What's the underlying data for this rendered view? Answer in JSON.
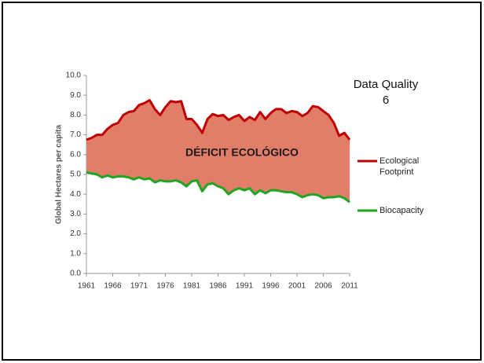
{
  "chart_data": {
    "type": "line",
    "y_label": "Global Hectares per capita",
    "annotations": [
      "DÉFICIT ECOLÓGICO",
      "Data Quality",
      "6"
    ],
    "fill_between": true,
    "fill_color": "#e27d6a",
    "x": [
      1961,
      1962,
      1963,
      1964,
      1965,
      1966,
      1967,
      1968,
      1969,
      1970,
      1971,
      1972,
      1973,
      1974,
      1975,
      1976,
      1977,
      1978,
      1979,
      1980,
      1981,
      1982,
      1983,
      1984,
      1985,
      1986,
      1987,
      1988,
      1989,
      1990,
      1991,
      1992,
      1993,
      1994,
      1995,
      1996,
      1997,
      1998,
      1999,
      2000,
      2001,
      2002,
      2003,
      2004,
      2005,
      2006,
      2007,
      2008,
      2009,
      2010,
      2011
    ],
    "series": [
      {
        "name": "Ecological Footprint",
        "color": "#c00000",
        "values": [
          6.75,
          6.85,
          7.0,
          7.0,
          7.3,
          7.5,
          7.6,
          8.0,
          8.15,
          8.2,
          8.5,
          8.6,
          8.75,
          8.3,
          8.0,
          8.4,
          8.7,
          8.65,
          8.7,
          7.8,
          7.8,
          7.5,
          7.1,
          7.8,
          8.05,
          7.95,
          8.0,
          7.75,
          7.9,
          8.0,
          7.7,
          7.9,
          7.75,
          8.15,
          7.8,
          8.1,
          8.3,
          8.3,
          8.1,
          8.2,
          8.15,
          7.95,
          8.1,
          8.45,
          8.4,
          8.2,
          8.0,
          7.6,
          6.95,
          7.1,
          6.75
        ]
      },
      {
        "name": "Biocapacity",
        "color": "#1fa51f",
        "values": [
          5.1,
          5.05,
          5.0,
          4.85,
          4.95,
          4.85,
          4.9,
          4.9,
          4.85,
          4.75,
          4.85,
          4.75,
          4.8,
          4.6,
          4.7,
          4.65,
          4.65,
          4.7,
          4.6,
          4.4,
          4.65,
          4.7,
          4.15,
          4.5,
          4.55,
          4.4,
          4.3,
          4.0,
          4.2,
          4.3,
          4.2,
          4.3,
          4.0,
          4.2,
          4.05,
          4.2,
          4.2,
          4.15,
          4.1,
          4.1,
          4.0,
          3.85,
          3.95,
          4.0,
          3.95,
          3.8,
          3.85,
          3.85,
          3.9,
          3.8,
          3.6
        ]
      }
    ],
    "xlim": [
      1961,
      2011
    ],
    "xticks": [
      1961,
      1966,
      1971,
      1976,
      1981,
      1986,
      1991,
      1996,
      2001,
      2006,
      2011
    ],
    "ylim": [
      0,
      10
    ],
    "yticks": [
      {
        "value": 0,
        "label": "0.0"
      },
      {
        "value": 1,
        "label": "1.0"
      },
      {
        "value": 2,
        "label": "2.0"
      },
      {
        "value": 3,
        "label": "3.0"
      },
      {
        "value": 4,
        "label": "4.0"
      },
      {
        "value": 5,
        "label": "5.0"
      },
      {
        "value": 6,
        "label": "6.0"
      },
      {
        "value": 7,
        "label": "7.0"
      },
      {
        "value": 8,
        "label": "8.0"
      },
      {
        "value": 9,
        "label": "9.0"
      },
      {
        "value": 10,
        "label": "10.0"
      }
    ],
    "legend": "right"
  }
}
